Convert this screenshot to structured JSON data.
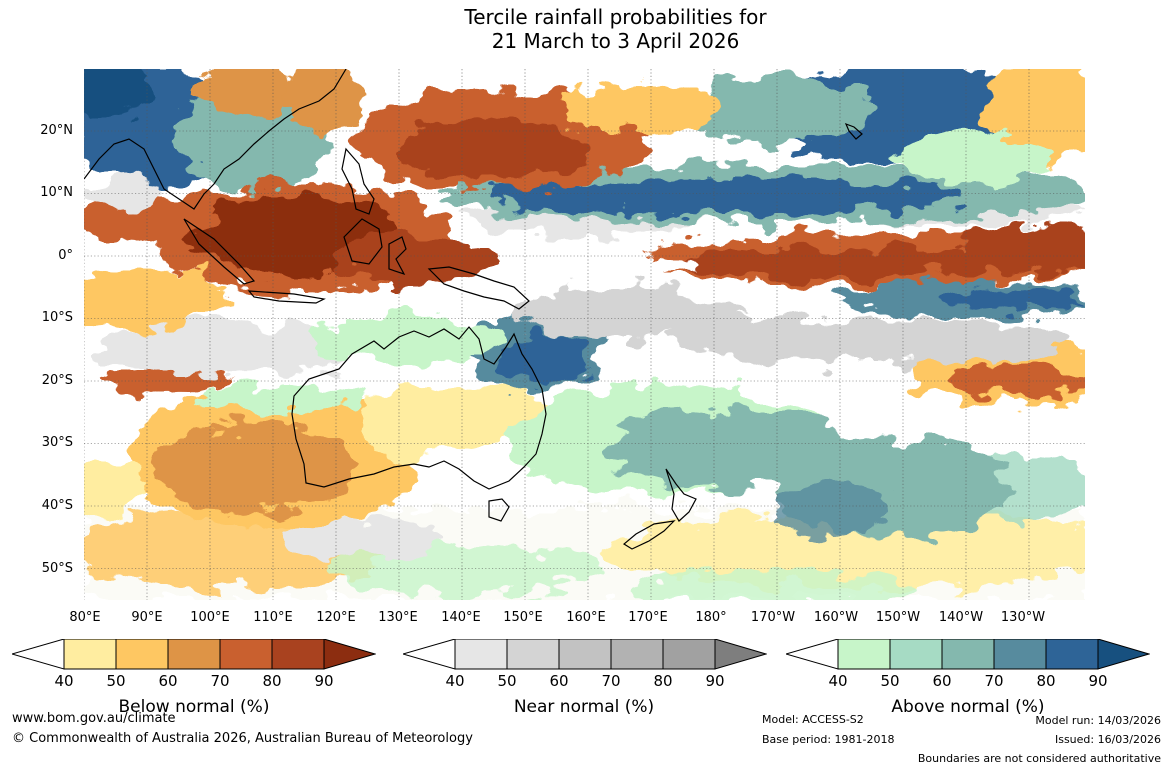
{
  "title": {
    "line1": "Tercile rainfall probabilities for",
    "line2": "21 March to 3 April 2026"
  },
  "lat_labels": [
    "20°N",
    "10°N",
    "0°",
    "10°S",
    "20°S",
    "30°S",
    "40°S",
    "50°S"
  ],
  "lon_labels": [
    "80°E",
    "90°E",
    "100°E",
    "110°E",
    "120°E",
    "130°E",
    "140°E",
    "150°E",
    "160°E",
    "170°E",
    "180°",
    "170°W",
    "160°W",
    "150°W",
    "140°W",
    "130°W"
  ],
  "colorbars": [
    {
      "label": "Below normal (%)",
      "ticks": [
        "40",
        "50",
        "60",
        "70",
        "80",
        "90"
      ],
      "colors": [
        "#ffeda0",
        "#fec762",
        "#de9446",
        "#c9602f",
        "#a9421f",
        "#8c2d10"
      ]
    },
    {
      "label": "Near normal (%)",
      "ticks": [
        "40",
        "50",
        "60",
        "70",
        "80",
        "90"
      ],
      "colors": [
        "#e6e6e6",
        "#d4d4d4",
        "#c2c2c2",
        "#b2b2b2",
        "#a1a1a1",
        "#7e7e7e"
      ]
    },
    {
      "label": "Above normal (%)",
      "ticks": [
        "40",
        "50",
        "60",
        "70",
        "80",
        "90"
      ],
      "colors": [
        "#c7f5c9",
        "#a6dbc4",
        "#84b8ae",
        "#578b9e",
        "#2e6497",
        "#17507f"
      ]
    }
  ],
  "footer": {
    "url": "www.bom.gov.au/climate",
    "copyright": "© Commonwealth of Australia 2026, Australian Bureau of Meteorology",
    "model": "Model: ACCESS-S2",
    "base_period": "Base period: 1981-2018",
    "model_run": "Model run: 14/03/2026",
    "issued": "Issued: 16/03/2026",
    "disclaimer": "Boundaries are not considered authoritative"
  }
}
